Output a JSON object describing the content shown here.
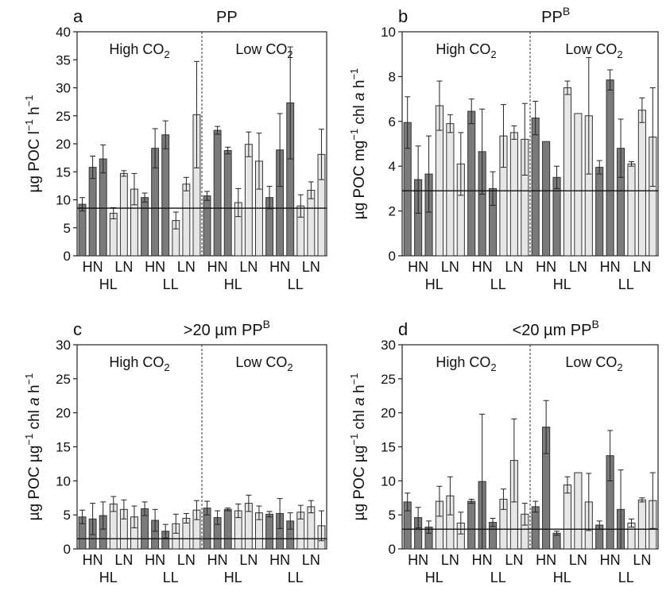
{
  "colors": {
    "dark": "#7a7a7a",
    "light": "#e6e6e6",
    "axis": "#222222"
  },
  "chart_data": [
    {
      "type": "bar",
      "panel_letter": "a",
      "title": "PP",
      "title_sup": "",
      "ylabel_main": "µg POC l",
      "ylabel_sup1": "−1",
      "ylabel_mid": " h",
      "ylabel_sup2": "−1",
      "ylabel_italic": "",
      "ylim": [
        0,
        40
      ],
      "yticks": [
        0,
        5,
        10,
        15,
        20,
        25,
        30,
        35,
        40
      ],
      "hline": 8.5,
      "group_labels": [
        "High CO",
        "Low CO"
      ],
      "group_subscript": "2",
      "n_label": [
        "HN",
        "LN",
        "HN",
        "LN",
        "HN",
        "LN",
        "HN",
        "LN"
      ],
      "light_label": [
        "HL",
        "LL",
        "HL",
        "LL"
      ],
      "bars": [
        {
          "v": 9.2,
          "e": 1.2,
          "c": "dark"
        },
        {
          "v": 15.8,
          "e": 2.0,
          "c": "dark"
        },
        {
          "v": 17.3,
          "e": 2.5,
          "c": "dark"
        },
        {
          "v": 7.6,
          "e": 1.0,
          "c": "light"
        },
        {
          "v": 14.7,
          "e": 0.5,
          "c": "light"
        },
        {
          "v": 11.9,
          "e": 2.8,
          "c": "light"
        },
        {
          "v": 10.4,
          "e": 0.8,
          "c": "dark"
        },
        {
          "v": 19.2,
          "e": 3.5,
          "c": "dark"
        },
        {
          "v": 21.6,
          "e": 2.5,
          "c": "dark"
        },
        {
          "v": 6.3,
          "e": 1.5,
          "c": "light"
        },
        {
          "v": 12.8,
          "e": 1.2,
          "c": "light"
        },
        {
          "v": 25.2,
          "e": 9.5,
          "c": "light"
        },
        {
          "v": 10.7,
          "e": 0.8,
          "c": "dark"
        },
        {
          "v": 22.4,
          "e": 0.7,
          "c": "dark"
        },
        {
          "v": 18.8,
          "e": 0.6,
          "c": "dark"
        },
        {
          "v": 9.5,
          "e": 2.5,
          "c": "light"
        },
        {
          "v": 19.9,
          "e": 2.2,
          "c": "light"
        },
        {
          "v": 16.9,
          "e": 5.0,
          "c": "light"
        },
        {
          "v": 10.4,
          "e": 2.0,
          "c": "dark"
        },
        {
          "v": 18.9,
          "e": 6.5,
          "c": "dark"
        },
        {
          "v": 27.3,
          "e": 10.0,
          "c": "dark"
        },
        {
          "v": 8.9,
          "e": 2.0,
          "c": "light"
        },
        {
          "v": 11.7,
          "e": 1.5,
          "c": "light"
        },
        {
          "v": 18.1,
          "e": 4.5,
          "c": "light"
        }
      ]
    },
    {
      "type": "bar",
      "panel_letter": "b",
      "title": "PP",
      "title_sup": "B",
      "ylabel_main": "µg POC mg",
      "ylabel_sup1": "−1",
      "ylabel_mid": " chl ",
      "ylabel_italic": "a",
      "ylabel_tail": " h",
      "ylabel_sup2": "−1",
      "ylim": [
        0,
        10
      ],
      "yticks": [
        0,
        2,
        4,
        6,
        8,
        10
      ],
      "hline": 2.9,
      "group_labels": [
        "High CO",
        "Low CO"
      ],
      "group_subscript": "2",
      "n_label": [
        "HN",
        "LN",
        "HN",
        "LN",
        "HN",
        "LN",
        "HN",
        "LN"
      ],
      "light_label": [
        "HL",
        "LL",
        "HL",
        "LL"
      ],
      "bars": [
        {
          "v": 5.95,
          "e": 1.15,
          "c": "dark"
        },
        {
          "v": 3.4,
          "e": 1.5,
          "c": "dark"
        },
        {
          "v": 3.65,
          "e": 1.7,
          "c": "dark"
        },
        {
          "v": 6.7,
          "e": 1.1,
          "c": "light"
        },
        {
          "v": 5.9,
          "e": 0.4,
          "c": "light"
        },
        {
          "v": 4.1,
          "e": 1.4,
          "c": "light"
        },
        {
          "v": 6.45,
          "e": 0.55,
          "c": "dark"
        },
        {
          "v": 4.65,
          "e": 1.9,
          "c": "dark"
        },
        {
          "v": 3.0,
          "e": 0.75,
          "c": "dark"
        },
        {
          "v": 5.35,
          "e": 1.4,
          "c": "light"
        },
        {
          "v": 5.5,
          "e": 0.3,
          "c": "light"
        },
        {
          "v": 5.2,
          "e": 1.6,
          "c": "light"
        },
        {
          "v": 6.15,
          "e": 0.75,
          "c": "dark"
        },
        {
          "v": 5.1,
          "e": 0.0,
          "c": "dark"
        },
        {
          "v": 3.5,
          "e": 0.5,
          "c": "dark"
        },
        {
          "v": 7.5,
          "e": 0.3,
          "c": "light"
        },
        {
          "v": 6.35,
          "e": 0.0,
          "c": "light"
        },
        {
          "v": 6.25,
          "e": 2.6,
          "c": "light"
        },
        {
          "v": 3.95,
          "e": 0.3,
          "c": "dark"
        },
        {
          "v": 7.85,
          "e": 0.45,
          "c": "dark"
        },
        {
          "v": 4.8,
          "e": 1.3,
          "c": "dark"
        },
        {
          "v": 4.1,
          "e": 0.1,
          "c": "light"
        },
        {
          "v": 6.5,
          "e": 0.55,
          "c": "light"
        },
        {
          "v": 5.3,
          "e": 2.2,
          "c": "light"
        }
      ]
    },
    {
      "type": "bar",
      "panel_letter": "c",
      "title": ">20 µm PP",
      "title_sup": "B",
      "ylabel_main": "µg POC µg",
      "ylabel_sup1": "−1",
      "ylabel_mid": " chl ",
      "ylabel_italic": "a",
      "ylabel_tail": " h",
      "ylabel_sup2": "−1",
      "ylim": [
        0,
        30
      ],
      "yticks": [
        0,
        5,
        10,
        15,
        20,
        25,
        30
      ],
      "hline": 1.5,
      "group_labels": [
        "High CO",
        "Low CO"
      ],
      "group_subscript": "2",
      "n_label": [
        "HN",
        "LN",
        "HN",
        "LN",
        "HN",
        "LN",
        "HN",
        "LN"
      ],
      "light_label": [
        "HL",
        "LL",
        "HL",
        "LL"
      ],
      "bars": [
        {
          "v": 4.7,
          "e": 1.0,
          "c": "dark"
        },
        {
          "v": 4.4,
          "e": 2.3,
          "c": "dark"
        },
        {
          "v": 4.9,
          "e": 2.0,
          "c": "dark"
        },
        {
          "v": 6.6,
          "e": 1.1,
          "c": "light"
        },
        {
          "v": 5.8,
          "e": 1.4,
          "c": "light"
        },
        {
          "v": 4.7,
          "e": 1.6,
          "c": "light"
        },
        {
          "v": 5.9,
          "e": 1.0,
          "c": "dark"
        },
        {
          "v": 4.2,
          "e": 1.6,
          "c": "dark"
        },
        {
          "v": 2.6,
          "e": 1.0,
          "c": "dark"
        },
        {
          "v": 3.7,
          "e": 1.4,
          "c": "light"
        },
        {
          "v": 4.5,
          "e": 0.7,
          "c": "light"
        },
        {
          "v": 5.7,
          "e": 1.4,
          "c": "light"
        },
        {
          "v": 6.0,
          "e": 1.0,
          "c": "dark"
        },
        {
          "v": 4.6,
          "e": 1.0,
          "c": "dark"
        },
        {
          "v": 5.8,
          "e": 0.2,
          "c": "dark"
        },
        {
          "v": 5.6,
          "e": 1.0,
          "c": "light"
        },
        {
          "v": 6.7,
          "e": 1.2,
          "c": "light"
        },
        {
          "v": 5.3,
          "e": 1.0,
          "c": "light"
        },
        {
          "v": 5.1,
          "e": 0.4,
          "c": "dark"
        },
        {
          "v": 5.2,
          "e": 2.2,
          "c": "dark"
        },
        {
          "v": 4.1,
          "e": 1.2,
          "c": "dark"
        },
        {
          "v": 5.4,
          "e": 1.0,
          "c": "light"
        },
        {
          "v": 6.2,
          "e": 0.9,
          "c": "light"
        },
        {
          "v": 3.4,
          "e": 2.2,
          "c": "light"
        }
      ]
    },
    {
      "type": "bar",
      "panel_letter": "d",
      "title": "<20 µm PP",
      "title_sup": "B",
      "ylabel_main": "µg POC µg",
      "ylabel_sup1": "−1",
      "ylabel_mid": " chl ",
      "ylabel_italic": "a",
      "ylabel_tail": " h",
      "ylabel_sup2": "−1",
      "ylim": [
        0,
        30
      ],
      "yticks": [
        0,
        5,
        10,
        15,
        20,
        25,
        30
      ],
      "hline": 2.9,
      "group_labels": [
        "High CO",
        "Low CO"
      ],
      "group_subscript": "2",
      "n_label": [
        "HN",
        "LN",
        "HN",
        "LN",
        "HN",
        "LN",
        "HN",
        "LN"
      ],
      "light_label": [
        "HL",
        "LL",
        "HL",
        "LL"
      ],
      "bars": [
        {
          "v": 6.9,
          "e": 1.3,
          "c": "dark"
        },
        {
          "v": 4.6,
          "e": 1.5,
          "c": "dark"
        },
        {
          "v": 3.2,
          "e": 0.9,
          "c": "dark"
        },
        {
          "v": 7.0,
          "e": 2.2,
          "c": "light"
        },
        {
          "v": 7.8,
          "e": 2.8,
          "c": "light"
        },
        {
          "v": 3.8,
          "e": 1.6,
          "c": "light"
        },
        {
          "v": 7.0,
          "e": 0.3,
          "c": "dark"
        },
        {
          "v": 9.9,
          "e": 9.9,
          "c": "dark"
        },
        {
          "v": 3.9,
          "e": 0.6,
          "c": "dark"
        },
        {
          "v": 7.3,
          "e": 1.5,
          "c": "light"
        },
        {
          "v": 13.0,
          "e": 6.1,
          "c": "light"
        },
        {
          "v": 5.1,
          "e": 1.6,
          "c": "light"
        },
        {
          "v": 6.2,
          "e": 0.8,
          "c": "dark"
        },
        {
          "v": 17.9,
          "e": 3.9,
          "c": "dark"
        },
        {
          "v": 2.3,
          "e": 0.3,
          "c": "dark"
        },
        {
          "v": 9.4,
          "e": 1.2,
          "c": "light"
        },
        {
          "v": 11.2,
          "e": 0.0,
          "c": "light"
        },
        {
          "v": 6.9,
          "e": 4.2,
          "c": "light"
        },
        {
          "v": 3.5,
          "e": 0.6,
          "c": "dark"
        },
        {
          "v": 13.7,
          "e": 3.7,
          "c": "dark"
        },
        {
          "v": 5.8,
          "e": 5.8,
          "c": "dark"
        },
        {
          "v": 3.8,
          "e": 0.6,
          "c": "light"
        },
        {
          "v": 7.2,
          "e": 0.3,
          "c": "light"
        },
        {
          "v": 7.1,
          "e": 4.1,
          "c": "light"
        }
      ]
    }
  ]
}
